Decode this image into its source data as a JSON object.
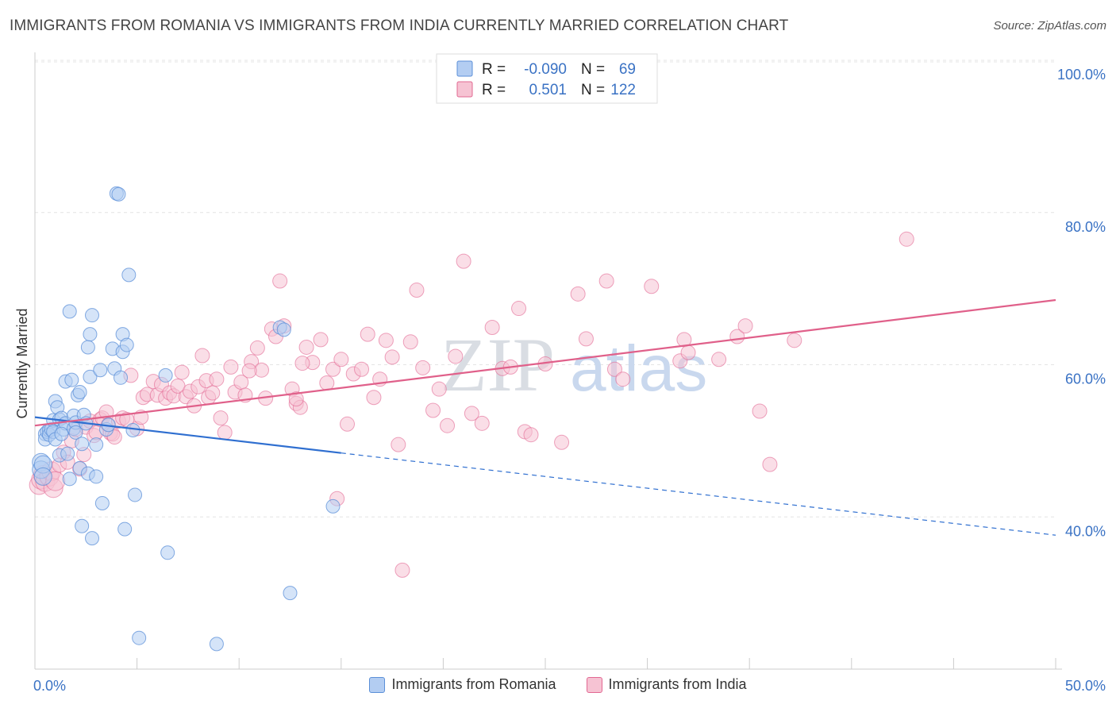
{
  "header": {
    "title": "IMMIGRANTS FROM ROMANIA VS IMMIGRANTS FROM INDIA CURRENTLY MARRIED CORRELATION CHART",
    "source": "Source: ZipAtlas.com"
  },
  "watermark": {
    "zip": "ZIP",
    "atlas": "atlas"
  },
  "legend_box": {
    "rows": [
      {
        "r_label": "R =",
        "r_value": "-0.090",
        "n_label": "N =",
        "n_value": "69"
      },
      {
        "r_label": "R =",
        "r_value": "0.501",
        "n_label": "N =",
        "n_value": "122"
      }
    ]
  },
  "colors": {
    "romania": "#5b8fd8",
    "romania_fill": "#b3cdf2",
    "india": "#e26892",
    "india_fill": "#f6c3d3",
    "tick_text": "#3a72c4"
  },
  "chart_data": {
    "type": "scatter",
    "title": "IMMIGRANTS FROM ROMANIA VS IMMIGRANTS FROM INDIA CURRENTLY MARRIED CORRELATION CHART",
    "xlabel": "",
    "ylabel": "Currently Married",
    "xlim": [
      0,
      50
    ],
    "ylim": [
      20,
      100
    ],
    "x_tick_labels": [
      "0.0%",
      "50.0%"
    ],
    "y_ticks": [
      40,
      60,
      80,
      100
    ],
    "y_tick_labels": [
      "40.0%",
      "60.0%",
      "80.0%",
      "100.0%"
    ],
    "grid": true,
    "legend_position": "bottom",
    "series": [
      {
        "name": "Immigrants from Romania",
        "r": -0.09,
        "n": 69,
        "trend": {
          "x0": 0,
          "y0": 53.1,
          "x1": 15,
          "y1": 48.4,
          "dashed_to_x": 50,
          "dashed_to_y": 37.6
        },
        "points": [
          [
            0.3,
            47.2
          ],
          [
            0.3,
            46.2
          ],
          [
            0.4,
            46.9
          ],
          [
            0.4,
            45.3
          ],
          [
            0.5,
            50.9
          ],
          [
            0.5,
            50.2
          ],
          [
            0.6,
            51.2
          ],
          [
            0.7,
            51.4
          ],
          [
            0.7,
            50.8
          ],
          [
            0.8,
            51.5
          ],
          [
            0.9,
            52.7
          ],
          [
            0.9,
            51.2
          ],
          [
            1.0,
            55.2
          ],
          [
            1.0,
            50.2
          ],
          [
            1.1,
            54.4
          ],
          [
            1.2,
            52.8
          ],
          [
            1.2,
            48.1
          ],
          [
            1.3,
            53.0
          ],
          [
            1.4,
            51.5
          ],
          [
            1.5,
            52.3
          ],
          [
            1.5,
            57.8
          ],
          [
            1.6,
            48.3
          ],
          [
            1.7,
            45.0
          ],
          [
            1.7,
            67.0
          ],
          [
            1.8,
            58.0
          ],
          [
            1.9,
            53.3
          ],
          [
            1.9,
            51.6
          ],
          [
            2.0,
            52.4
          ],
          [
            2.0,
            51.1
          ],
          [
            2.1,
            56.0
          ],
          [
            2.2,
            56.4
          ],
          [
            2.2,
            46.4
          ],
          [
            2.3,
            49.6
          ],
          [
            2.3,
            38.8
          ],
          [
            2.4,
            53.4
          ],
          [
            2.5,
            52.3
          ],
          [
            2.6,
            45.7
          ],
          [
            2.6,
            62.3
          ],
          [
            2.7,
            64.0
          ],
          [
            2.7,
            58.4
          ],
          [
            2.8,
            37.2
          ],
          [
            2.8,
            66.5
          ],
          [
            3.0,
            49.5
          ],
          [
            3.0,
            45.3
          ],
          [
            3.2,
            59.3
          ],
          [
            3.3,
            41.8
          ],
          [
            3.5,
            51.5
          ],
          [
            3.6,
            52.1
          ],
          [
            3.8,
            62.1
          ],
          [
            3.9,
            59.5
          ],
          [
            4.0,
            82.5
          ],
          [
            4.1,
            82.4
          ],
          [
            4.2,
            58.3
          ],
          [
            4.3,
            64.0
          ],
          [
            4.3,
            61.7
          ],
          [
            4.4,
            38.4
          ],
          [
            4.5,
            62.6
          ],
          [
            4.6,
            71.8
          ],
          [
            4.8,
            51.4
          ],
          [
            4.9,
            42.9
          ],
          [
            5.1,
            24.1
          ],
          [
            6.4,
            58.6
          ],
          [
            6.5,
            35.3
          ],
          [
            8.9,
            23.3
          ],
          [
            12.0,
            64.9
          ],
          [
            12.2,
            64.6
          ],
          [
            12.5,
            30.0
          ],
          [
            14.6,
            41.4
          ],
          [
            1.3,
            50.9
          ]
        ]
      },
      {
        "name": "Immigrants from India",
        "r": 0.501,
        "n": 122,
        "trend": {
          "x0": 0,
          "y0": 52.0,
          "x1": 50,
          "y1": 68.5
        },
        "points": [
          [
            0.2,
            44.2
          ],
          [
            0.3,
            44.9
          ],
          [
            0.4,
            45.5
          ],
          [
            0.5,
            44.6
          ],
          [
            0.7,
            45.3
          ],
          [
            0.8,
            46.0
          ],
          [
            0.9,
            43.8
          ],
          [
            1.0,
            44.7
          ],
          [
            1.2,
            46.8
          ],
          [
            1.4,
            48.5
          ],
          [
            1.6,
            47.2
          ],
          [
            1.8,
            50.0
          ],
          [
            2.0,
            51.5
          ],
          [
            2.2,
            46.3
          ],
          [
            2.4,
            48.2
          ],
          [
            2.5,
            51.8
          ],
          [
            2.7,
            52.6
          ],
          [
            2.9,
            50.7
          ],
          [
            3.0,
            51.1
          ],
          [
            3.2,
            52.8
          ],
          [
            3.3,
            53.0
          ],
          [
            3.5,
            53.8
          ],
          [
            3.6,
            52.1
          ],
          [
            3.7,
            51.0
          ],
          [
            3.8,
            50.9
          ],
          [
            3.9,
            50.5
          ],
          [
            4.1,
            52.6
          ],
          [
            4.3,
            53.0
          ],
          [
            4.5,
            52.8
          ],
          [
            4.7,
            58.6
          ],
          [
            5.0,
            51.6
          ],
          [
            5.2,
            53.1
          ],
          [
            5.3,
            55.7
          ],
          [
            5.5,
            56.1
          ],
          [
            5.8,
            57.8
          ],
          [
            6.0,
            56.0
          ],
          [
            6.2,
            57.4
          ],
          [
            6.4,
            55.6
          ],
          [
            6.6,
            56.3
          ],
          [
            6.8,
            55.9
          ],
          [
            7.0,
            57.2
          ],
          [
            7.2,
            59.0
          ],
          [
            7.4,
            55.8
          ],
          [
            7.6,
            56.5
          ],
          [
            7.8,
            54.6
          ],
          [
            8.0,
            57.1
          ],
          [
            8.2,
            61.2
          ],
          [
            8.4,
            57.9
          ],
          [
            8.5,
            55.7
          ],
          [
            8.7,
            56.3
          ],
          [
            8.9,
            58.1
          ],
          [
            9.1,
            53.0
          ],
          [
            9.3,
            51.1
          ],
          [
            9.6,
            59.7
          ],
          [
            9.8,
            56.4
          ],
          [
            10.1,
            57.7
          ],
          [
            10.3,
            56.0
          ],
          [
            10.6,
            60.4
          ],
          [
            10.9,
            62.2
          ],
          [
            11.1,
            59.3
          ],
          [
            11.3,
            55.6
          ],
          [
            11.6,
            64.7
          ],
          [
            11.8,
            63.7
          ],
          [
            12.0,
            71.0
          ],
          [
            12.2,
            65.1
          ],
          [
            12.6,
            56.8
          ],
          [
            12.8,
            54.9
          ],
          [
            13.0,
            54.4
          ],
          [
            13.3,
            62.3
          ],
          [
            13.6,
            60.3
          ],
          [
            14.0,
            63.3
          ],
          [
            14.3,
            57.6
          ],
          [
            14.6,
            59.4
          ],
          [
            14.8,
            42.4
          ],
          [
            15.0,
            60.7
          ],
          [
            15.3,
            52.2
          ],
          [
            15.6,
            58.8
          ],
          [
            16.0,
            59.4
          ],
          [
            16.3,
            64.0
          ],
          [
            16.6,
            55.7
          ],
          [
            16.9,
            58.1
          ],
          [
            17.2,
            63.2
          ],
          [
            17.5,
            61.0
          ],
          [
            17.8,
            49.5
          ],
          [
            18.0,
            33.0
          ],
          [
            18.4,
            63.0
          ],
          [
            18.7,
            69.8
          ],
          [
            19.0,
            59.6
          ],
          [
            19.5,
            54.0
          ],
          [
            19.8,
            56.8
          ],
          [
            20.2,
            52.0
          ],
          [
            20.6,
            61.1
          ],
          [
            21.0,
            73.6
          ],
          [
            21.4,
            53.6
          ],
          [
            21.9,
            52.3
          ],
          [
            22.4,
            64.9
          ],
          [
            22.9,
            59.5
          ],
          [
            23.3,
            59.7
          ],
          [
            23.7,
            67.4
          ],
          [
            24.0,
            51.2
          ],
          [
            24.3,
            50.8
          ],
          [
            25.0,
            60.1
          ],
          [
            25.8,
            49.8
          ],
          [
            26.6,
            69.3
          ],
          [
            27.0,
            63.4
          ],
          [
            28.0,
            71.0
          ],
          [
            28.4,
            59.4
          ],
          [
            28.8,
            58.1
          ],
          [
            30.2,
            70.3
          ],
          [
            31.6,
            60.5
          ],
          [
            31.8,
            63.3
          ],
          [
            32.0,
            61.6
          ],
          [
            33.5,
            60.7
          ],
          [
            34.4,
            63.7
          ],
          [
            34.8,
            65.1
          ],
          [
            35.5,
            53.9
          ],
          [
            36.0,
            46.9
          ],
          [
            37.2,
            63.2
          ],
          [
            42.7,
            76.5
          ],
          [
            13.1,
            60.2
          ],
          [
            10.5,
            59.2
          ],
          [
            12.8,
            55.5
          ]
        ]
      }
    ]
  },
  "bottom_legend": {
    "items": [
      {
        "label": "Immigrants from Romania"
      },
      {
        "label": "Immigrants from India"
      }
    ]
  }
}
